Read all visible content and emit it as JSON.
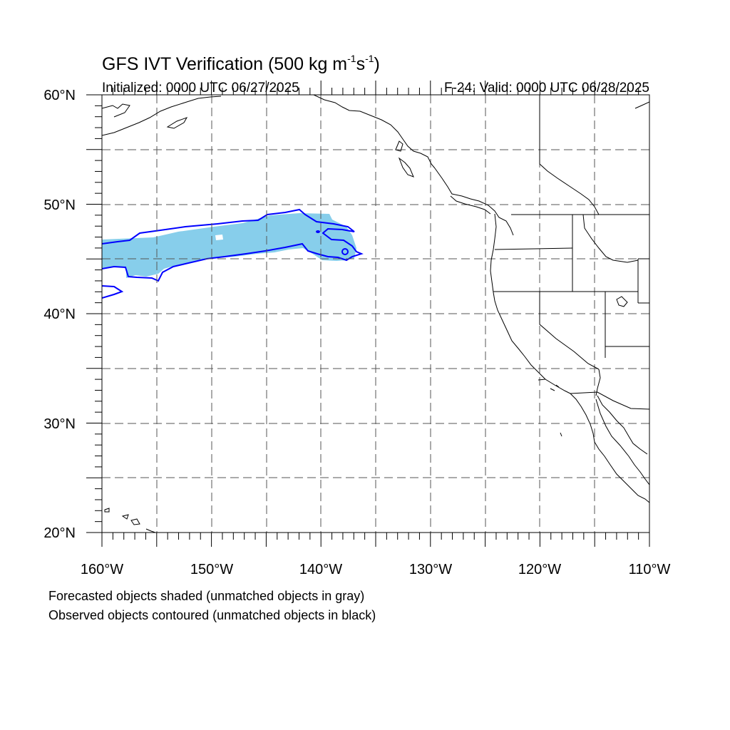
{
  "figure": {
    "title_main": "GFS IVT Verification (500 kg m",
    "title_sup1": "-1",
    "title_mid": "s",
    "title_sup2": "-1",
    "title_end": ")",
    "init_label": "Initialized: 0000 UTC 06/27/2025",
    "valid_label": "F-24: Valid: 0000 UTC 06/28/2025"
  },
  "map": {
    "lon_range": [
      -160,
      -110
    ],
    "lat_range": [
      20,
      60
    ],
    "x_tick_labels": [
      "160°W",
      "150°W",
      "140°W",
      "130°W",
      "120°W",
      "110°W"
    ],
    "y_tick_labels": [
      "60°N",
      "50°N",
      "40°N",
      "30°N",
      "20°N"
    ],
    "gridlines": "dashed every 5°",
    "colors": {
      "forecast_fill": "#87ceeb",
      "observed_contour": "#0000ff",
      "coastline": "#000000",
      "gridline": "#555555"
    }
  },
  "legend": {
    "line1": "Forecasted objects shaded (unmatched objects in gray)",
    "line2": "Observed objects contoured (unmatched objects in black)"
  }
}
